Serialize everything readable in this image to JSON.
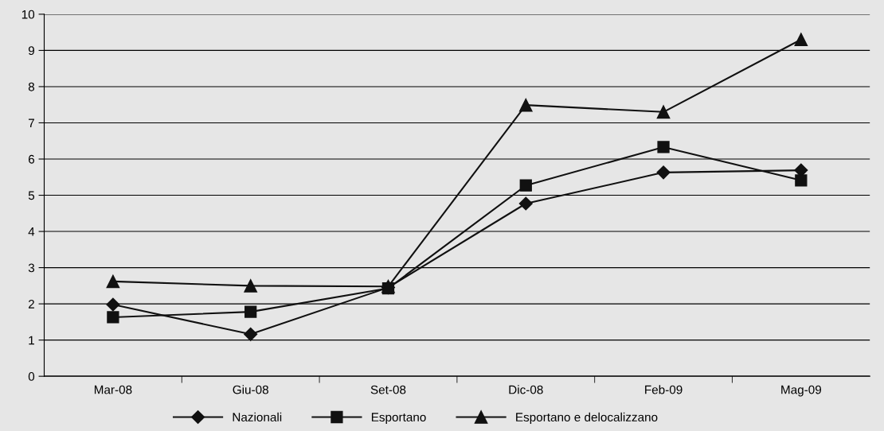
{
  "chart_data": {
    "type": "line",
    "categories": [
      "Mar-08",
      "Giu-08",
      "Set-08",
      "Dic-08",
      "Feb-09",
      "Mag-09"
    ],
    "series": [
      {
        "name": "Nazionali",
        "color": "#111111",
        "marker": "diamond",
        "values": [
          1.98,
          1.16,
          2.45,
          4.77,
          5.63,
          5.69
        ]
      },
      {
        "name": "Esportano",
        "color": "#111111",
        "marker": "square",
        "values": [
          1.63,
          1.78,
          2.43,
          5.27,
          6.33,
          5.41
        ]
      },
      {
        "name": "Esportano e delocalizzano",
        "color": "#111111",
        "marker": "triangle",
        "values": [
          2.62,
          2.5,
          2.48,
          7.49,
          7.3,
          9.3
        ]
      }
    ],
    "ylim": [
      0,
      10
    ],
    "yticks": [
      0,
      1,
      2,
      3,
      4,
      5,
      6,
      7,
      8,
      9,
      10
    ],
    "grid": "y",
    "legend": "bottom",
    "line_style": "solid"
  }
}
